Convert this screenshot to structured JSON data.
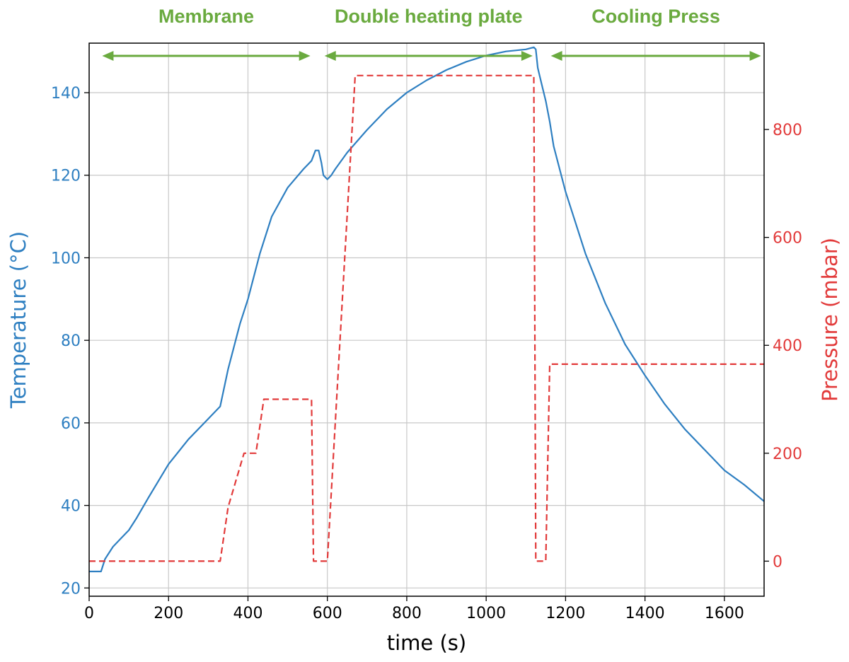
{
  "chart_data": {
    "type": "line",
    "xlabel": "time (s)",
    "ylabel_left": "Temperature (°C)",
    "ylabel_right": "Pressure (mbar)",
    "xlim": [
      0,
      1700
    ],
    "ylim_left": [
      18,
      152
    ],
    "ylim_right": [
      -65,
      960
    ],
    "x_ticks": [
      0,
      200,
      400,
      600,
      800,
      1000,
      1200,
      1400,
      1600
    ],
    "y_left_ticks": [
      20,
      40,
      60,
      80,
      100,
      120,
      140
    ],
    "y_right_ticks": [
      0,
      200,
      400,
      600,
      800
    ],
    "grid": true,
    "colors": {
      "temperature": "#2e7fc1",
      "pressure": "#e23a3a",
      "phase": "#6aaa3f"
    },
    "phases": [
      {
        "label": "Membrane",
        "from": 40,
        "to": 550
      },
      {
        "label": "Double heating plate",
        "from": 600,
        "to": 1110
      },
      {
        "label": "Cooling Press",
        "from": 1170,
        "to": 1685
      }
    ],
    "series": [
      {
        "axis": "left",
        "style": "solid",
        "x": [
          0,
          30,
          40,
          60,
          80,
          100,
          120,
          150,
          200,
          250,
          300,
          330,
          350,
          380,
          400,
          430,
          460,
          500,
          540,
          560,
          570,
          578,
          585,
          590,
          600,
          610,
          620,
          650,
          700,
          750,
          800,
          850,
          900,
          950,
          1000,
          1050,
          1100,
          1120,
          1125,
          1130,
          1140,
          1150,
          1160,
          1170,
          1200,
          1250,
          1300,
          1350,
          1400,
          1450,
          1500,
          1550,
          1600,
          1650,
          1700
        ],
        "y": [
          24,
          24,
          27,
          30,
          32,
          34,
          37,
          42,
          50,
          56,
          61,
          64,
          73,
          84,
          90,
          101,
          110,
          117,
          121.5,
          123.5,
          126,
          126,
          123,
          120,
          119,
          120,
          121.5,
          125.5,
          131,
          136,
          140,
          143,
          145.5,
          147.5,
          149,
          150,
          150.5,
          151,
          150.5,
          146,
          142,
          138,
          133,
          127,
          116,
          101,
          89,
          79,
          71.5,
          64.5,
          58.5,
          53.5,
          48.5,
          45,
          41
        ]
      },
      {
        "axis": "right",
        "style": "dashed",
        "x": [
          0,
          330,
          350,
          390,
          400,
          420,
          440,
          560,
          565,
          580,
          600,
          670,
          1120,
          1125,
          1150,
          1160,
          1200,
          1700
        ],
        "y": [
          0,
          0,
          100,
          200,
          200,
          200,
          300,
          300,
          0,
          0,
          0,
          900,
          900,
          0,
          0,
          365,
          365,
          365
        ]
      }
    ]
  }
}
